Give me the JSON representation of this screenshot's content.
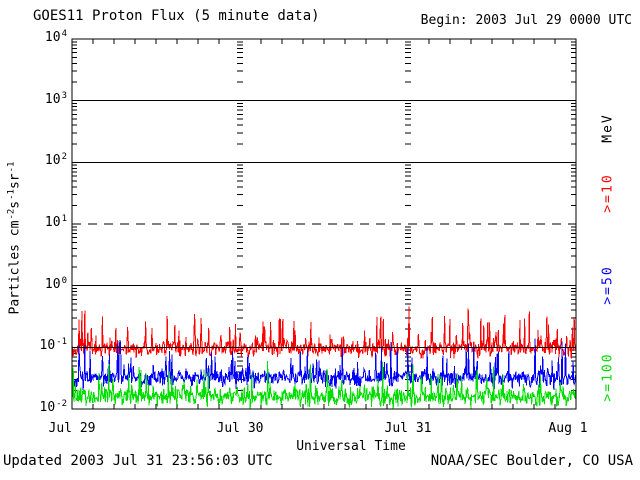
{
  "title": "GOES11 Proton Flux (5 minute data)",
  "begin_label": "Begin: 2003 Jul 29 0000 UTC",
  "footer": {
    "updated": "Updated 2003 Jul 31 23:56:03 UTC",
    "source": "NOAA/SEC Boulder, CO USA"
  },
  "chart_data": {
    "type": "line",
    "title": "GOES11 Proton Flux (5 minute data)",
    "xlabel": "Universal Time",
    "x_axis": {
      "tick_labels": [
        "Jul 29",
        "Jul 30",
        "Jul 31",
        "Aug 1"
      ],
      "days": 3,
      "minor_tick_hours": 3
    },
    "y_axis": {
      "log_range_exp": [
        -2,
        4
      ],
      "ticks": [
        {
          "exp": 4,
          "label_base": "10",
          "label_exp": "4"
        },
        {
          "exp": 3,
          "label_base": "10",
          "label_exp": "3"
        },
        {
          "exp": 2,
          "label_base": "10",
          "label_exp": "2"
        },
        {
          "exp": 1,
          "label_base": "10",
          "label_exp": "1"
        },
        {
          "exp": 0,
          "label_base": "10",
          "label_exp": "0"
        },
        {
          "exp": -1,
          "label_base": "10",
          "label_exp": "-1"
        },
        {
          "exp": -2,
          "label_base": "10",
          "label_exp": "-2"
        }
      ],
      "unit_segments": [
        {
          "text": "Particles cm"
        },
        {
          "sup": "-2"
        },
        {
          "text": "s"
        },
        {
          "sup": "-1"
        },
        {
          "text": "sr"
        },
        {
          "sup": "-1"
        }
      ]
    },
    "gridlines": [
      {
        "exp": 3,
        "style": "solid",
        "over_data": false
      },
      {
        "exp": 2,
        "style": "solid",
        "over_data": false
      },
      {
        "exp": 1,
        "style": "dashed",
        "over_data": false
      },
      {
        "exp": 0,
        "style": "solid",
        "over_data": false
      },
      {
        "exp": -1,
        "style": "solid",
        "over_data": true
      }
    ],
    "right_axis_labels": [
      {
        "text": "MeV",
        "color": "#000000"
      },
      {
        "text": ">=10",
        "color": "#ff0000"
      },
      {
        "text": ">=50",
        "color": "#0000ff"
      },
      {
        "text": ">=100",
        "color": "#00dd00"
      }
    ],
    "points_per_day": 288,
    "series": [
      {
        "name": ">=10 MeV",
        "color": "#ff0000",
        "approx_flux_range": [
          0.06,
          0.5
        ],
        "approx_median_flux": 0.1,
        "gen": {
          "seed": 20030729,
          "mean": -1.02,
          "sigma": 0.2,
          "spike_prob": 0.12,
          "spike_amp": 0.55,
          "clip": [
            -1.28,
            -0.33
          ]
        }
      },
      {
        "name": ">=50 MeV",
        "color": "#0000ff",
        "approx_flux_range": [
          0.017,
          0.14
        ],
        "approx_median_flux": 0.033,
        "gen": {
          "seed": 20030750,
          "mean": -1.5,
          "sigma": 0.22,
          "spike_prob": 0.1,
          "spike_amp": 0.55,
          "clip": [
            -1.78,
            -0.86
          ]
        }
      },
      {
        "name": ">=100 MeV",
        "color": "#00dd00",
        "approx_flux_range": [
          0.01,
          0.07
        ],
        "approx_median_flux": 0.017,
        "gen": {
          "seed": 20030800,
          "mean": -1.8,
          "sigma": 0.22,
          "spike_prob": 0.08,
          "spike_amp": 0.5,
          "clip": [
            -2.0,
            -1.12
          ]
        }
      }
    ]
  }
}
